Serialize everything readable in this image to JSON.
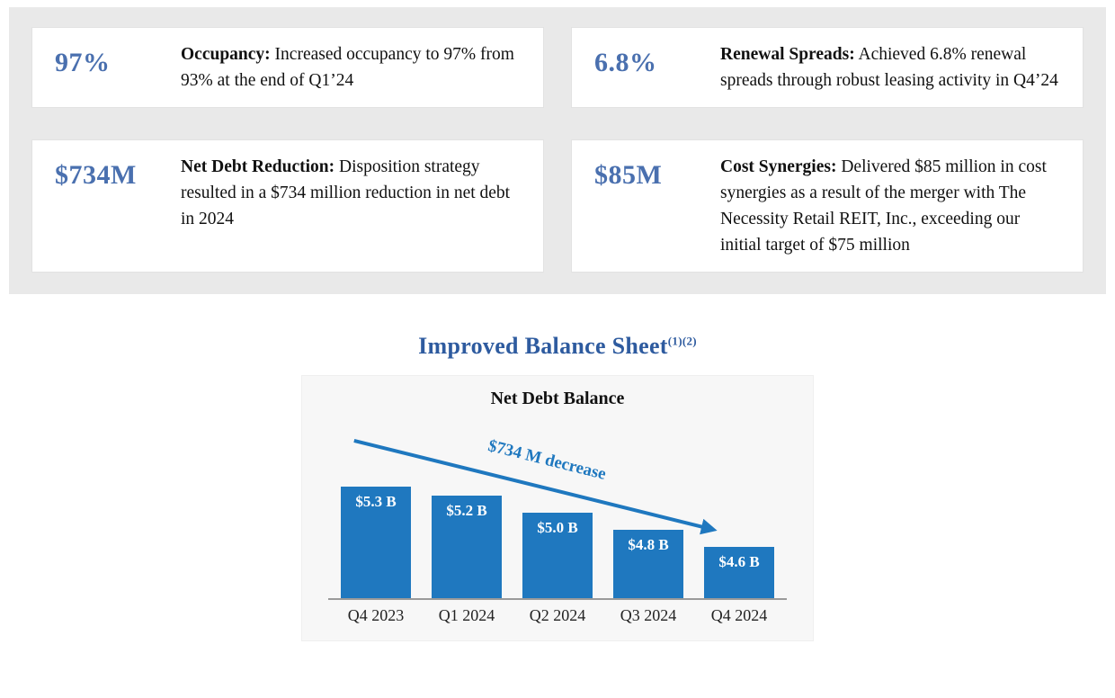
{
  "kpi_cards": [
    {
      "stat": "97%",
      "label": "Occupancy:",
      "text": "Increased occupancy to 97% from 93% at the end of Q1’24"
    },
    {
      "stat": "6.8%",
      "label": "Renewal Spreads:",
      "text": "Achieved 6.8% renewal spreads through robust leasing activity in Q4’24"
    },
    {
      "stat": "$734M",
      "label": "Net Debt Reduction:",
      "text": "Disposition strategy resulted in a $734 million reduction in net debt in 2024"
    },
    {
      "stat": "$85M",
      "label": "Cost Synergies:",
      "text": "Delivered $85 million in cost synergies as a result of the merger with The Necessity Retail REIT, Inc., exceeding our initial target of $75 million"
    }
  ],
  "section": {
    "title": "Improved Balance Sheet",
    "superscript": "(1)(2)"
  },
  "chart_data": {
    "type": "bar",
    "title": "Net Debt Balance",
    "categories": [
      "Q4 2023",
      "Q1 2024",
      "Q2 2024",
      "Q3 2024",
      "Q4 2024"
    ],
    "values": [
      5.3,
      5.2,
      5.0,
      4.8,
      4.6
    ],
    "bar_labels": [
      "$5.3 B",
      "$5.2 B",
      "$5.0 B",
      "$4.8 B",
      "$4.6 B"
    ],
    "annotation": "$734 M decrease",
    "ylim": [
      4.0,
      5.5
    ],
    "grid": false,
    "legend": false
  },
  "colors": {
    "stat_blue": "#4a70af",
    "title_blue": "#2e5b9f",
    "bar_blue": "#1f78bf",
    "band_gray": "#e9e9e9",
    "panel_gray": "#f7f7f7"
  }
}
